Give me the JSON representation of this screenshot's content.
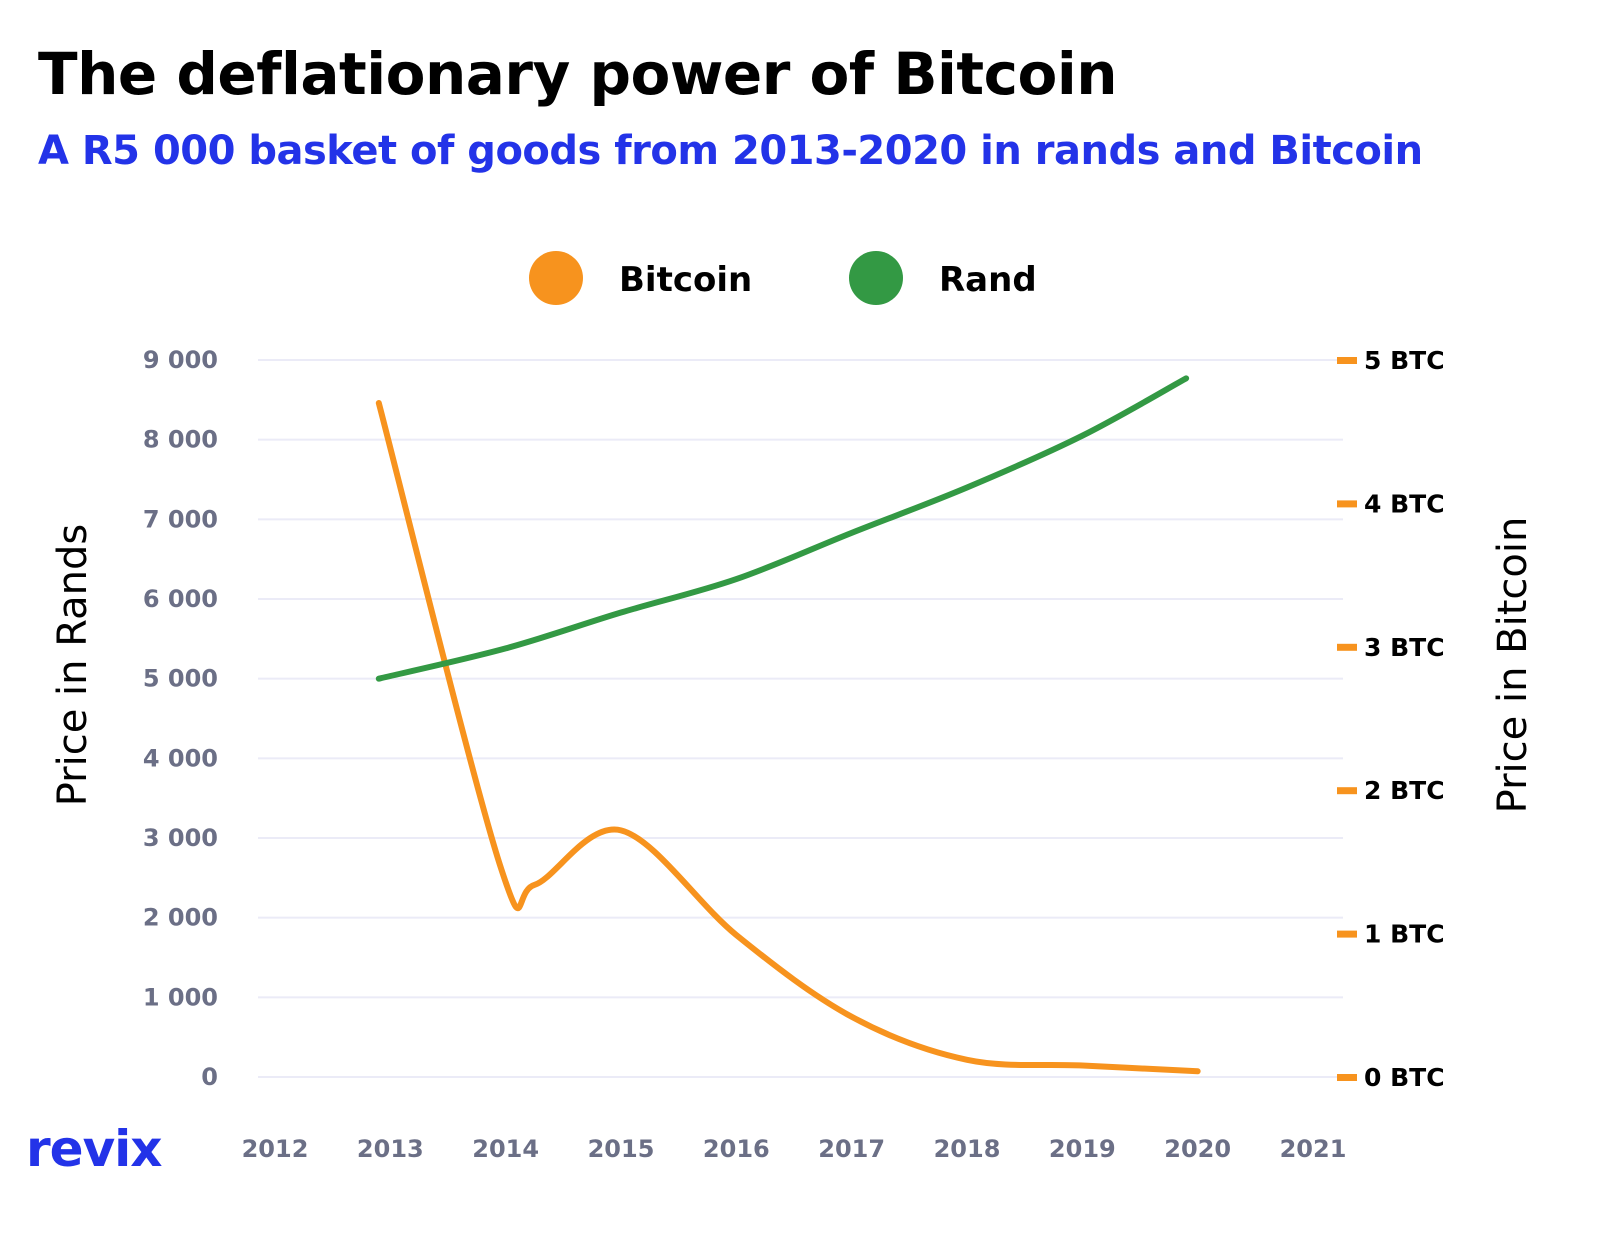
{
  "chart_data": {
    "type": "line",
    "title": "The deflationary power of Bitcoin",
    "subtitle": "A R5 000 basket of goods from 2013-2020 in rands and Bitcoin",
    "ylabel": "Price in Rands",
    "y2label": "Price in Bitcoin",
    "xlim": [
      2012,
      2021
    ],
    "ylim": [
      0,
      9000
    ],
    "y2lim": [
      0,
      5
    ],
    "x_ticks": [
      "2012",
      "2013",
      "2014",
      "2015",
      "2016",
      "2017",
      "2018",
      "2019",
      "2020",
      "2021"
    ],
    "y_ticks": [
      "0",
      "1 000",
      "2 000",
      "3 000",
      "4 000",
      "5 000",
      "6 000",
      "7 000",
      "8 000",
      "9 000"
    ],
    "y2_ticks": [
      "0 BTC",
      "1 BTC",
      "2 BTC",
      "3 BTC",
      "4 BTC",
      "5 BTC"
    ],
    "grid": true,
    "legend_placement": "top-center",
    "series": [
      {
        "name": "Bitcoin",
        "axis": "right",
        "color": "#f7931e",
        "x": [
          2012.9,
          2013.95,
          2014.25,
          2015.0,
          2016.0,
          2017.0,
          2018.0,
          2019.0,
          2020.0
        ],
        "values": [
          4.7,
          1.48,
          1.34,
          1.72,
          0.99,
          0.42,
          0.12,
          0.08,
          0.04
        ]
      },
      {
        "name": "Rand",
        "axis": "left",
        "color": "#339944",
        "x": [
          2012.9,
          2014,
          2015,
          2016,
          2017,
          2018,
          2019,
          2019.9
        ],
        "values": [
          5000,
          5380,
          5830,
          6250,
          6830,
          7400,
          8050,
          8770
        ]
      }
    ]
  },
  "brand": {
    "logo": "revix",
    "color": "#2333e8"
  }
}
